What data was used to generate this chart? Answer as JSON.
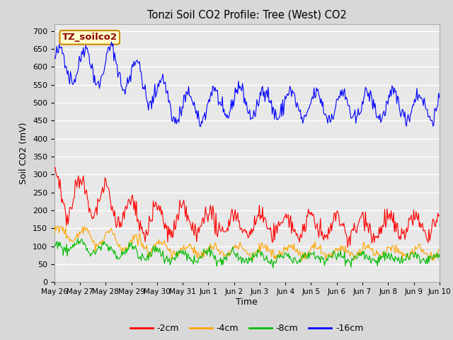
{
  "title": "Tonzi Soil CO2 Profile: Tree (West) CO2",
  "ylabel": "Soil CO2 (mV)",
  "xlabel": "Time",
  "watermark": "TZ_soilco2",
  "fig_facecolor": "#d8d8d8",
  "plot_bg_color": "#e8e8e8",
  "ylim": [
    0,
    720
  ],
  "yticks": [
    0,
    50,
    100,
    150,
    200,
    250,
    300,
    350,
    400,
    450,
    500,
    550,
    600,
    650,
    700
  ],
  "xtick_labels": [
    "May 26",
    "May 27",
    "May 28",
    "May 29",
    "May 30",
    "May 31",
    "Jun 1",
    "Jun 2",
    "Jun 3",
    "Jun 4",
    "Jun 5",
    "Jun 6",
    "Jun 7",
    "Jun 8",
    "Jun 9",
    "Jun 10"
  ],
  "colors": [
    "#ff0000",
    "#ffa500",
    "#00bb00",
    "#0000ff"
  ],
  "legend_labels": [
    "-2cm",
    "-4cm",
    "-8cm",
    "-16cm"
  ],
  "n_points": 480,
  "seed": 42
}
